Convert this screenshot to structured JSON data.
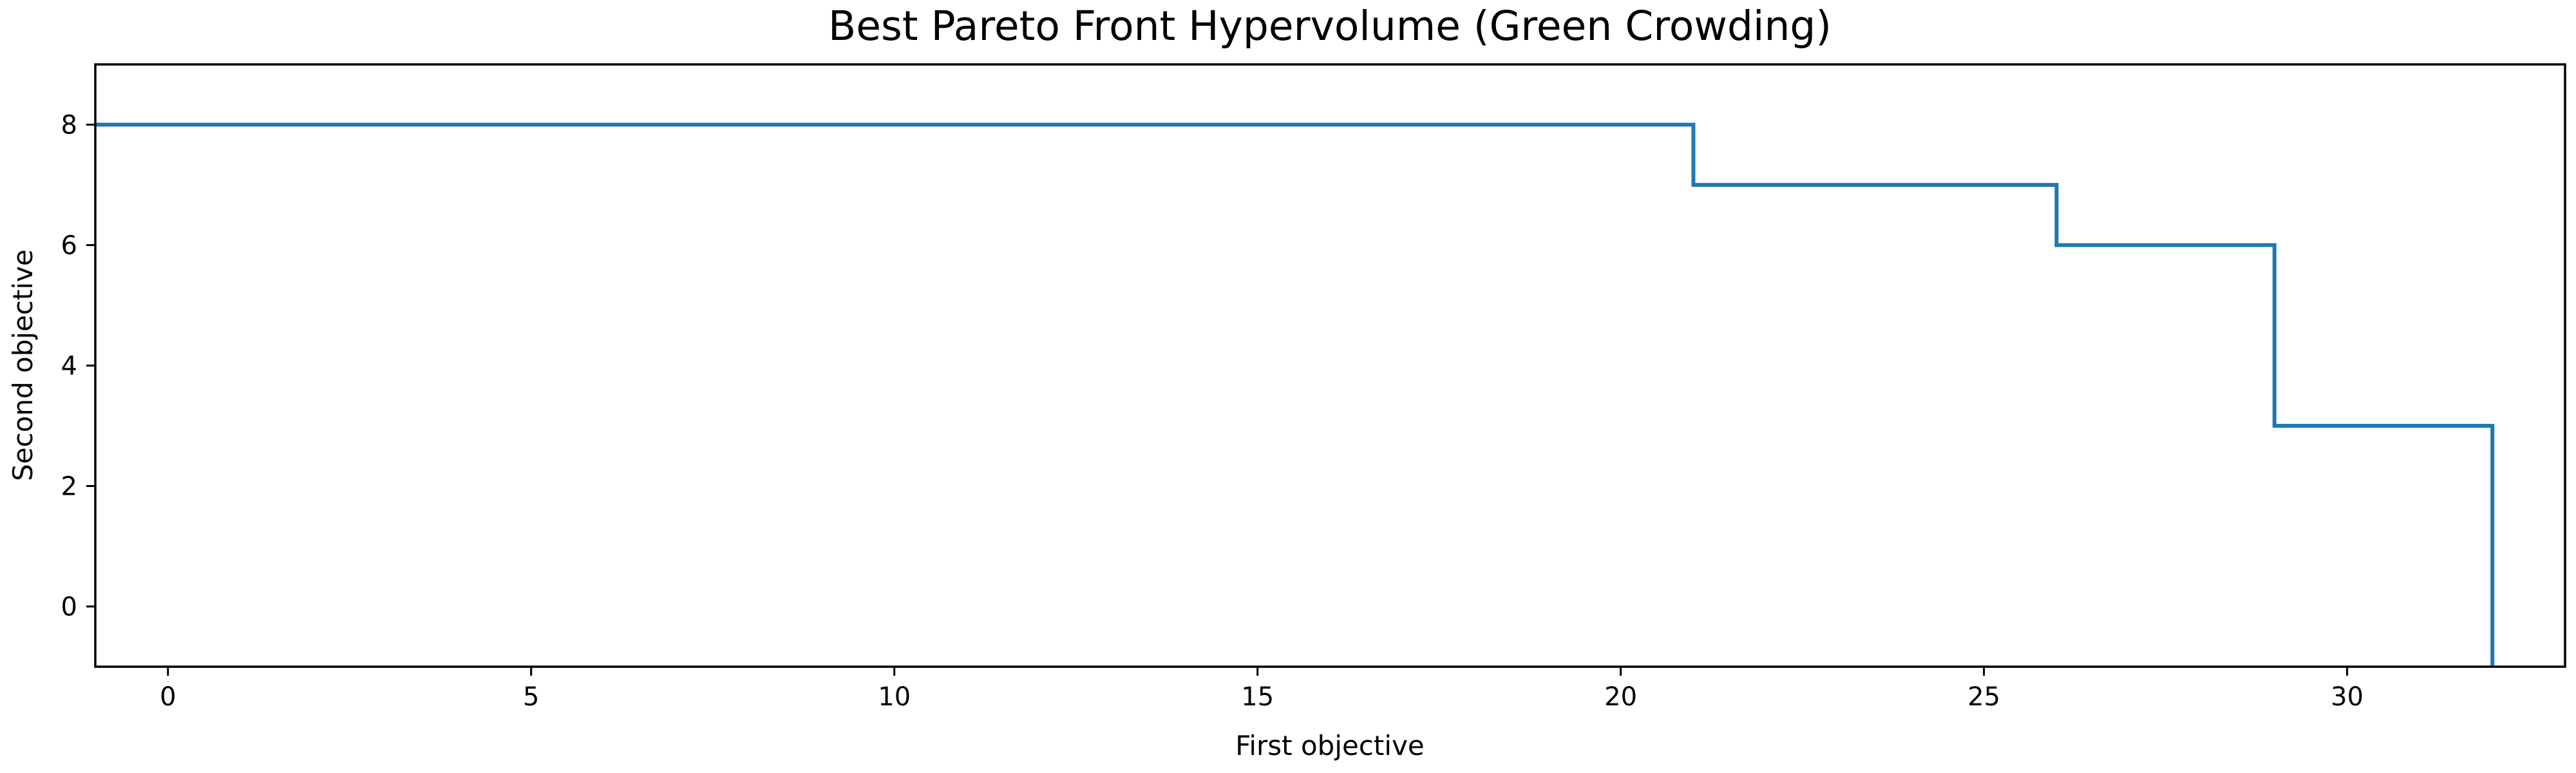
{
  "chart_data": {
    "type": "line",
    "step": "post",
    "title": "Best Pareto Front Hypervolume (Green Crowding)",
    "xlabel": "First objective",
    "ylabel": "Second objective",
    "xlim": [
      -1,
      33
    ],
    "ylim": [
      -1,
      9
    ],
    "xticks": [
      0,
      5,
      10,
      15,
      20,
      25,
      30
    ],
    "yticks": [
      0,
      2,
      4,
      6,
      8
    ],
    "grid": false,
    "series": [
      {
        "x": [
          -1,
          21,
          21,
          26,
          26,
          29,
          29,
          32,
          32
        ],
        "y": [
          8,
          8,
          7,
          7,
          6,
          6,
          3,
          3,
          -1
        ],
        "color": "#1f77b4"
      }
    ]
  }
}
